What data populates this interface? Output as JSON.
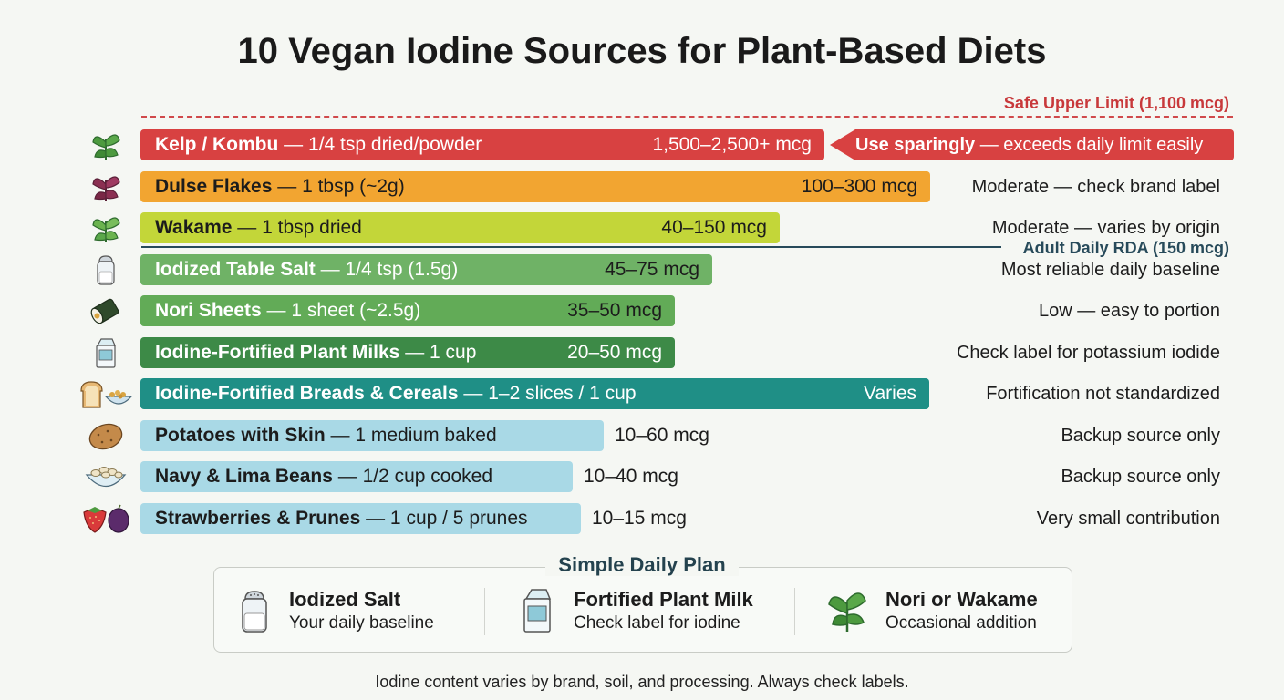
{
  "title": "10 Vegan Iodine Sources for Plant-Based Diets",
  "upper_limit_label": "Safe Upper Limit (1,100 mcg)",
  "rda_label": "Adult Daily RDA (150 mcg)",
  "colors": {
    "upper_limit": "#d0494b",
    "rda": "#274a5a",
    "kelp": "#d84141",
    "dulse": "#f2a531",
    "wakame": "#c3d639",
    "salt": "#6fb266",
    "nori": "#62ab57",
    "milk": "#3d8a47",
    "breads": "#1f8f86",
    "low": "#a9d9e6"
  },
  "chart_data": {
    "type": "bar",
    "orientation": "horizontal",
    "title": "10 Vegan Iodine Sources for Plant-Based Diets",
    "reference_lines": [
      {
        "label": "Safe Upper Limit (1,100 mcg)",
        "value": 1100
      },
      {
        "label": "Adult Daily RDA (150 mcg)",
        "value": 150
      }
    ],
    "rows": [
      {
        "name": "Kelp / Kombu",
        "serving": " — 1/4 tsp dried/powder",
        "value_text": "1,500–2,500+ mcg",
        "min": 1500,
        "max": 2500,
        "note_bold": "Use sparingly",
        "note": " — exceeds daily limit easily",
        "icon": "kelp-icon"
      },
      {
        "name": "Dulse Flakes",
        "serving": " — 1 tbsp (~2g)",
        "value_text": "100–300 mcg",
        "min": 100,
        "max": 300,
        "note": "Moderate — check brand label",
        "icon": "dulse-icon"
      },
      {
        "name": "Wakame",
        "serving": " — 1 tbsp dried",
        "value_text": "40–150 mcg",
        "min": 40,
        "max": 150,
        "note": "Moderate — varies by origin",
        "icon": "wakame-icon"
      },
      {
        "name": "Iodized Table Salt",
        "serving": " — 1/4 tsp (1.5g)",
        "value_text": "45–75 mcg",
        "min": 45,
        "max": 75,
        "note": "Most reliable daily baseline",
        "icon": "salt-shaker-icon"
      },
      {
        "name": "Nori Sheets",
        "serving": " — 1 sheet (~2.5g)",
        "value_text": "35–50 mcg",
        "min": 35,
        "max": 50,
        "note": "Low — easy to portion",
        "icon": "nori-roll-icon"
      },
      {
        "name": "Iodine-Fortified Plant Milks",
        "serving": " — 1 cup",
        "value_text": "20–50 mcg",
        "min": 20,
        "max": 50,
        "note": "Check label for potassium iodide",
        "icon": "milk-carton-icon"
      },
      {
        "name": "Iodine-Fortified Breads & Cereals",
        "serving": " — 1–2 slices / 1 cup",
        "value_text": "Varies",
        "min": null,
        "max": null,
        "note": "Fortification not standardized",
        "icon": "bread-cereal-icon"
      },
      {
        "name": "Potatoes with Skin",
        "serving": " — 1 medium baked",
        "value_text": "10–60 mcg",
        "min": 10,
        "max": 60,
        "note": "Backup source only",
        "icon": "potato-icon"
      },
      {
        "name": "Navy & Lima Beans",
        "serving": " — 1/2 cup cooked",
        "value_text": "10–40 mcg",
        "min": 10,
        "max": 40,
        "note": "Backup source only",
        "icon": "bean-bowl-icon"
      },
      {
        "name": "Strawberries & Prunes",
        "serving": " — 1 cup / 5 prunes",
        "value_text": "10–15 mcg",
        "min": 10,
        "max": 15,
        "note": "Very small contribution",
        "icon": "strawberry-prune-icon"
      }
    ]
  },
  "plan": {
    "title": "Simple Daily Plan",
    "items": [
      {
        "head": "Iodized Salt",
        "sub": "Your daily baseline",
        "icon": "salt-shaker-icon"
      },
      {
        "head": "Fortified Plant Milk",
        "sub": "Check label for iodine",
        "icon": "milk-carton-icon"
      },
      {
        "head": "Nori or Wakame",
        "sub": "Occasional addition",
        "icon": "seaweed-icon"
      }
    ]
  },
  "footer": "Iodine content varies by brand, soil, and processing. Always check labels."
}
